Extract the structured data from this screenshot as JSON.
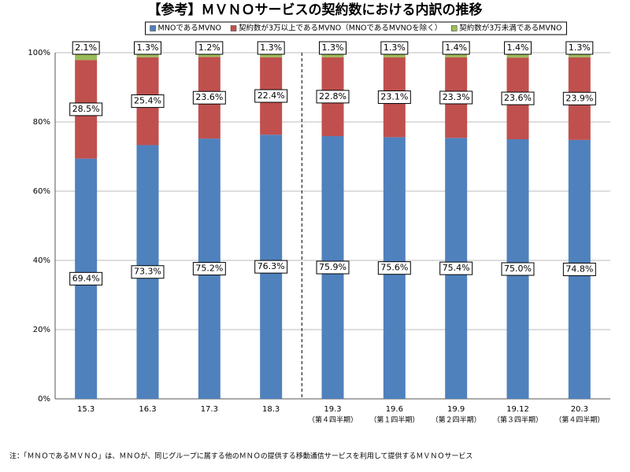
{
  "chart_data": {
    "type": "stacked_bar",
    "title": "【参考】ＭＶＮＯサービスの契約数における内訳の推移",
    "categories": [
      "15.3",
      "16.3",
      "17.3",
      "18.3",
      "19.3",
      "19.6",
      "19.9",
      "19.12",
      "20.3"
    ],
    "category_notes": [
      null,
      null,
      null,
      null,
      "（第４四半期）",
      "（第１四半期）",
      "（第２四半期）",
      "（第３四半期）",
      "（第４四半期）"
    ],
    "series": [
      {
        "name": "MNOであるMVNO",
        "color": "#4f81bd",
        "values": [
          69.4,
          73.3,
          75.2,
          76.3,
          75.9,
          75.6,
          75.4,
          75.0,
          74.8
        ],
        "value_labels": [
          "69.4%",
          "73.3%",
          "75.2%",
          "76.3%",
          "75.9%",
          "75.6%",
          "75.4%",
          "75.0%",
          "74.8%"
        ]
      },
      {
        "name": "契約数が3万以上であるMVNO（MNOであるMVNOを除く）",
        "color": "#c0504d",
        "values": [
          28.5,
          25.4,
          23.6,
          22.4,
          22.8,
          23.1,
          23.3,
          23.6,
          23.9
        ],
        "value_labels": [
          "28.5%",
          "25.4%",
          "23.6%",
          "22.4%",
          "22.8%",
          "23.1%",
          "23.3%",
          "23.6%",
          "23.9%"
        ]
      },
      {
        "name": "契約数が3万未満であるMVNO",
        "color": "#9bbb59",
        "values": [
          2.1,
          1.3,
          1.2,
          1.3,
          1.3,
          1.3,
          1.4,
          1.4,
          1.3
        ],
        "value_labels": [
          "2.1%",
          "1.3%",
          "1.2%",
          "1.3%",
          "1.3%",
          "1.3%",
          "1.4%",
          "1.4%",
          "1.3%"
        ]
      }
    ],
    "ylim": [
      0,
      100
    ],
    "yticks": [
      {
        "value": 0,
        "label": "0%"
      },
      {
        "value": 20,
        "label": "20%"
      },
      {
        "value": 40,
        "label": "40%"
      },
      {
        "value": 60,
        "label": "60%"
      },
      {
        "value": 80,
        "label": "80%"
      },
      {
        "value": 100,
        "label": "100%"
      }
    ],
    "grid": true,
    "footnote": "注：「ＭＮＯであるＭＶＮＯ」は、ＭＮＯが、同じグループに属する他のＭＮＯの提供する移動通信サービスを利用して提供するＭＶＮＯサービス"
  }
}
